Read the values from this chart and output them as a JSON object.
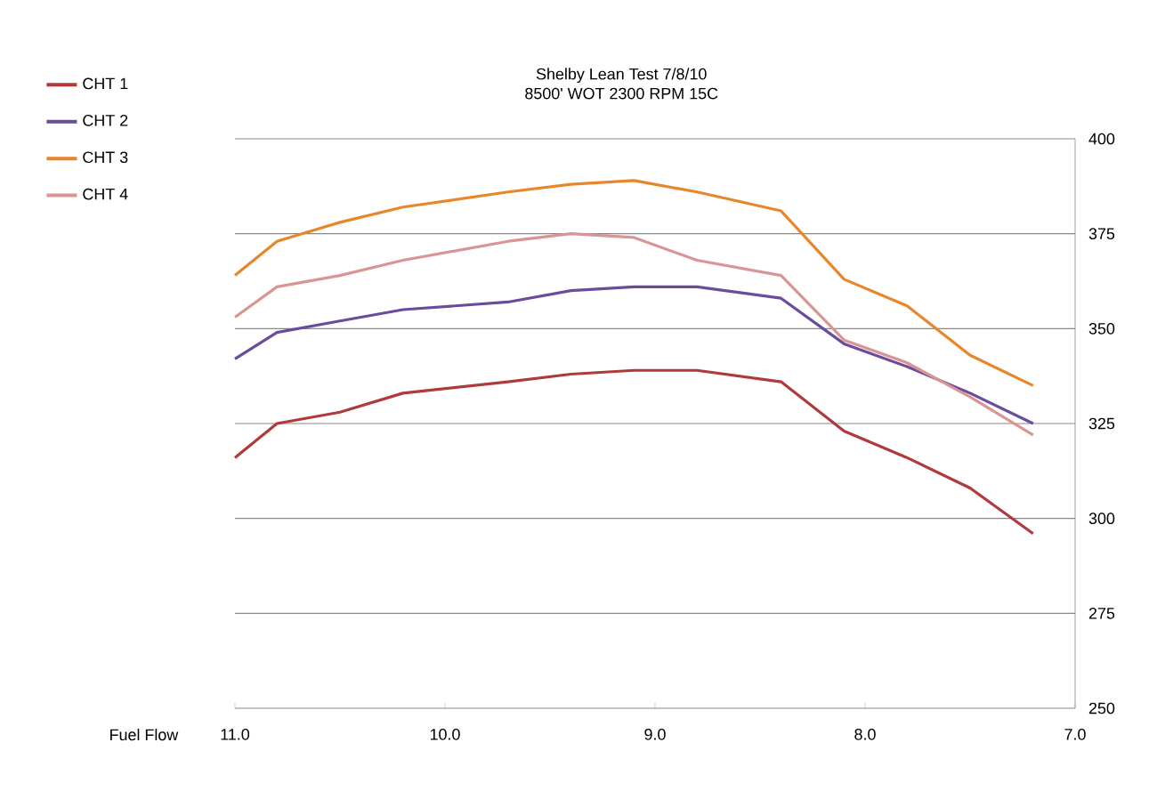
{
  "chart_data": {
    "type": "line",
    "title": "Shelby Lean Test 7/8/10",
    "subtitle": "8500'   WOT 2300 RPM    15C",
    "xlabel": "Fuel Flow",
    "x": [
      11.0,
      10.8,
      10.5,
      10.2,
      9.7,
      9.4,
      9.1,
      8.8,
      8.4,
      8.1,
      7.8,
      7.5,
      7.2
    ],
    "series": [
      {
        "name": "CHT 1",
        "color": "#b03a3a",
        "values": [
          316,
          325,
          328,
          333,
          336,
          338,
          339,
          339,
          336,
          323,
          316,
          308,
          296
        ]
      },
      {
        "name": "CHT 2",
        "color": "#6a4c9c",
        "values": [
          342,
          349,
          352,
          355,
          357,
          360,
          361,
          361,
          358,
          346,
          340,
          333,
          325
        ]
      },
      {
        "name": "CHT 3",
        "color": "#e8862a",
        "values": [
          364,
          373,
          378,
          382,
          386,
          388,
          389,
          386,
          381,
          363,
          356,
          343,
          335
        ]
      },
      {
        "name": "CHT 4",
        "color": "#d99594",
        "values": [
          353,
          361,
          364,
          368,
          373,
          375,
          374,
          368,
          364,
          347,
          341,
          332,
          322
        ]
      }
    ],
    "xlim": [
      11,
      7
    ],
    "xticks": [
      {
        "value": 11,
        "label": "11.0"
      },
      {
        "value": 10,
        "label": "10.0"
      },
      {
        "value": 9,
        "label": "9.0"
      },
      {
        "value": 8,
        "label": "8.0"
      },
      {
        "value": 7,
        "label": "7.0"
      }
    ],
    "ylim": [
      250,
      400
    ],
    "yticks": [
      250,
      275,
      300,
      325,
      350,
      375,
      400
    ],
    "grid": "y",
    "legend": "top left",
    "line_style": "solid"
  }
}
